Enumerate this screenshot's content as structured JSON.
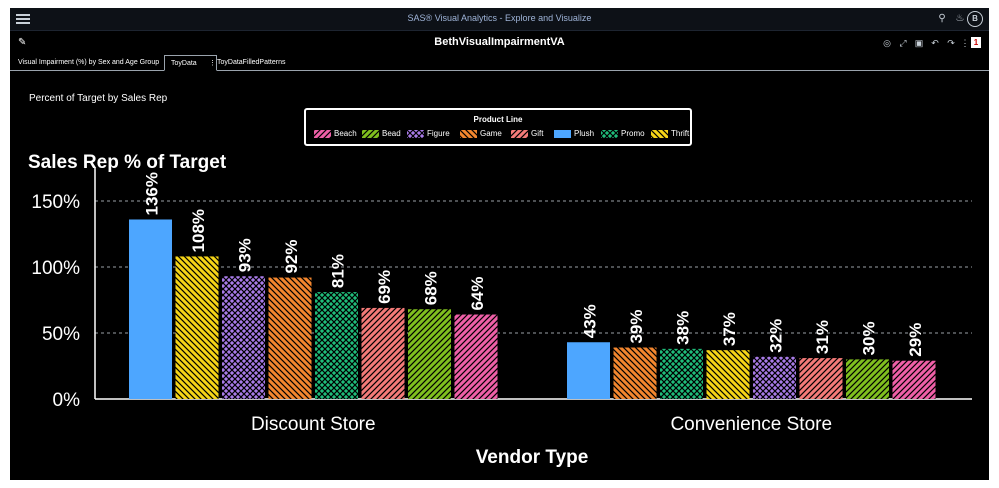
{
  "app": {
    "title": "SAS® Visual Analytics - Explore and Visualize",
    "avatar_initial": "B",
    "notification_count": "1"
  },
  "report": {
    "title": "BethVisualImpairmentVA"
  },
  "tabs": [
    {
      "label": "Visual Impairment (%) by Sex and Age Group",
      "active": false
    },
    {
      "label": "ToyData",
      "active": true
    },
    {
      "label": "ToyDataFilledPatterns",
      "active": false
    }
  ],
  "tab_menu_glyph": "⋮",
  "object": {
    "title": "Percent of Target by Sales Rep"
  },
  "legend": {
    "title": "Product Line",
    "items": [
      {
        "label": "Beach",
        "color": "#ef5fa7",
        "pattern": "diag-right"
      },
      {
        "label": "Bead",
        "color": "#7fbf1e",
        "pattern": "diag-right"
      },
      {
        "label": "Figure",
        "color": "#a97be8",
        "pattern": "crosshatch"
      },
      {
        "label": "Game",
        "color": "#f2862e",
        "pattern": "diag-left"
      },
      {
        "label": "Gift",
        "color": "#f47a78",
        "pattern": "diag-right"
      },
      {
        "label": "Plush",
        "color": "#4da6ff",
        "pattern": "solid"
      },
      {
        "label": "Promo",
        "color": "#1fbd7a",
        "pattern": "crosshatch"
      },
      {
        "label": "Thrift",
        "color": "#f5d417",
        "pattern": "diag-left"
      }
    ]
  },
  "chart_data": {
    "type": "bar",
    "title": "Sales Rep % of Target",
    "xlabel": "Vendor Type",
    "ylabel": "",
    "ylim": [
      0,
      1.75
    ],
    "y_ticks": [
      {
        "value": 0,
        "label": "0%"
      },
      {
        "value": 0.5,
        "label": "50%"
      },
      {
        "value": 1.0,
        "label": "100%"
      },
      {
        "value": 1.5,
        "label": "150%"
      }
    ],
    "grid": "horizontal-dashed",
    "categories": [
      "Discount Store",
      "Convenience Store"
    ],
    "groups": [
      {
        "category": "Discount Store",
        "bars": [
          {
            "series": "Plush",
            "value": 1.36,
            "label": "136%"
          },
          {
            "series": "Thrift",
            "value": 1.08,
            "label": "108%"
          },
          {
            "series": "Figure",
            "value": 0.93,
            "label": "93%"
          },
          {
            "series": "Game",
            "value": 0.92,
            "label": "92%"
          },
          {
            "series": "Promo",
            "value": 0.81,
            "label": "81%"
          },
          {
            "series": "Gift",
            "value": 0.69,
            "label": "69%"
          },
          {
            "series": "Bead",
            "value": 0.68,
            "label": "68%"
          },
          {
            "series": "Beach",
            "value": 0.64,
            "label": "64%"
          }
        ]
      },
      {
        "category": "Convenience Store",
        "bars": [
          {
            "series": "Plush",
            "value": 0.43,
            "label": "43%"
          },
          {
            "series": "Game",
            "value": 0.39,
            "label": "39%"
          },
          {
            "series": "Promo",
            "value": 0.38,
            "label": "38%"
          },
          {
            "series": "Thrift",
            "value": 0.37,
            "label": "37%"
          },
          {
            "series": "Figure",
            "value": 0.32,
            "label": "32%"
          },
          {
            "series": "Gift",
            "value": 0.31,
            "label": "31%"
          },
          {
            "series": "Bead",
            "value": 0.3,
            "label": "30%"
          },
          {
            "series": "Beach",
            "value": 0.29,
            "label": "29%"
          }
        ]
      }
    ]
  }
}
